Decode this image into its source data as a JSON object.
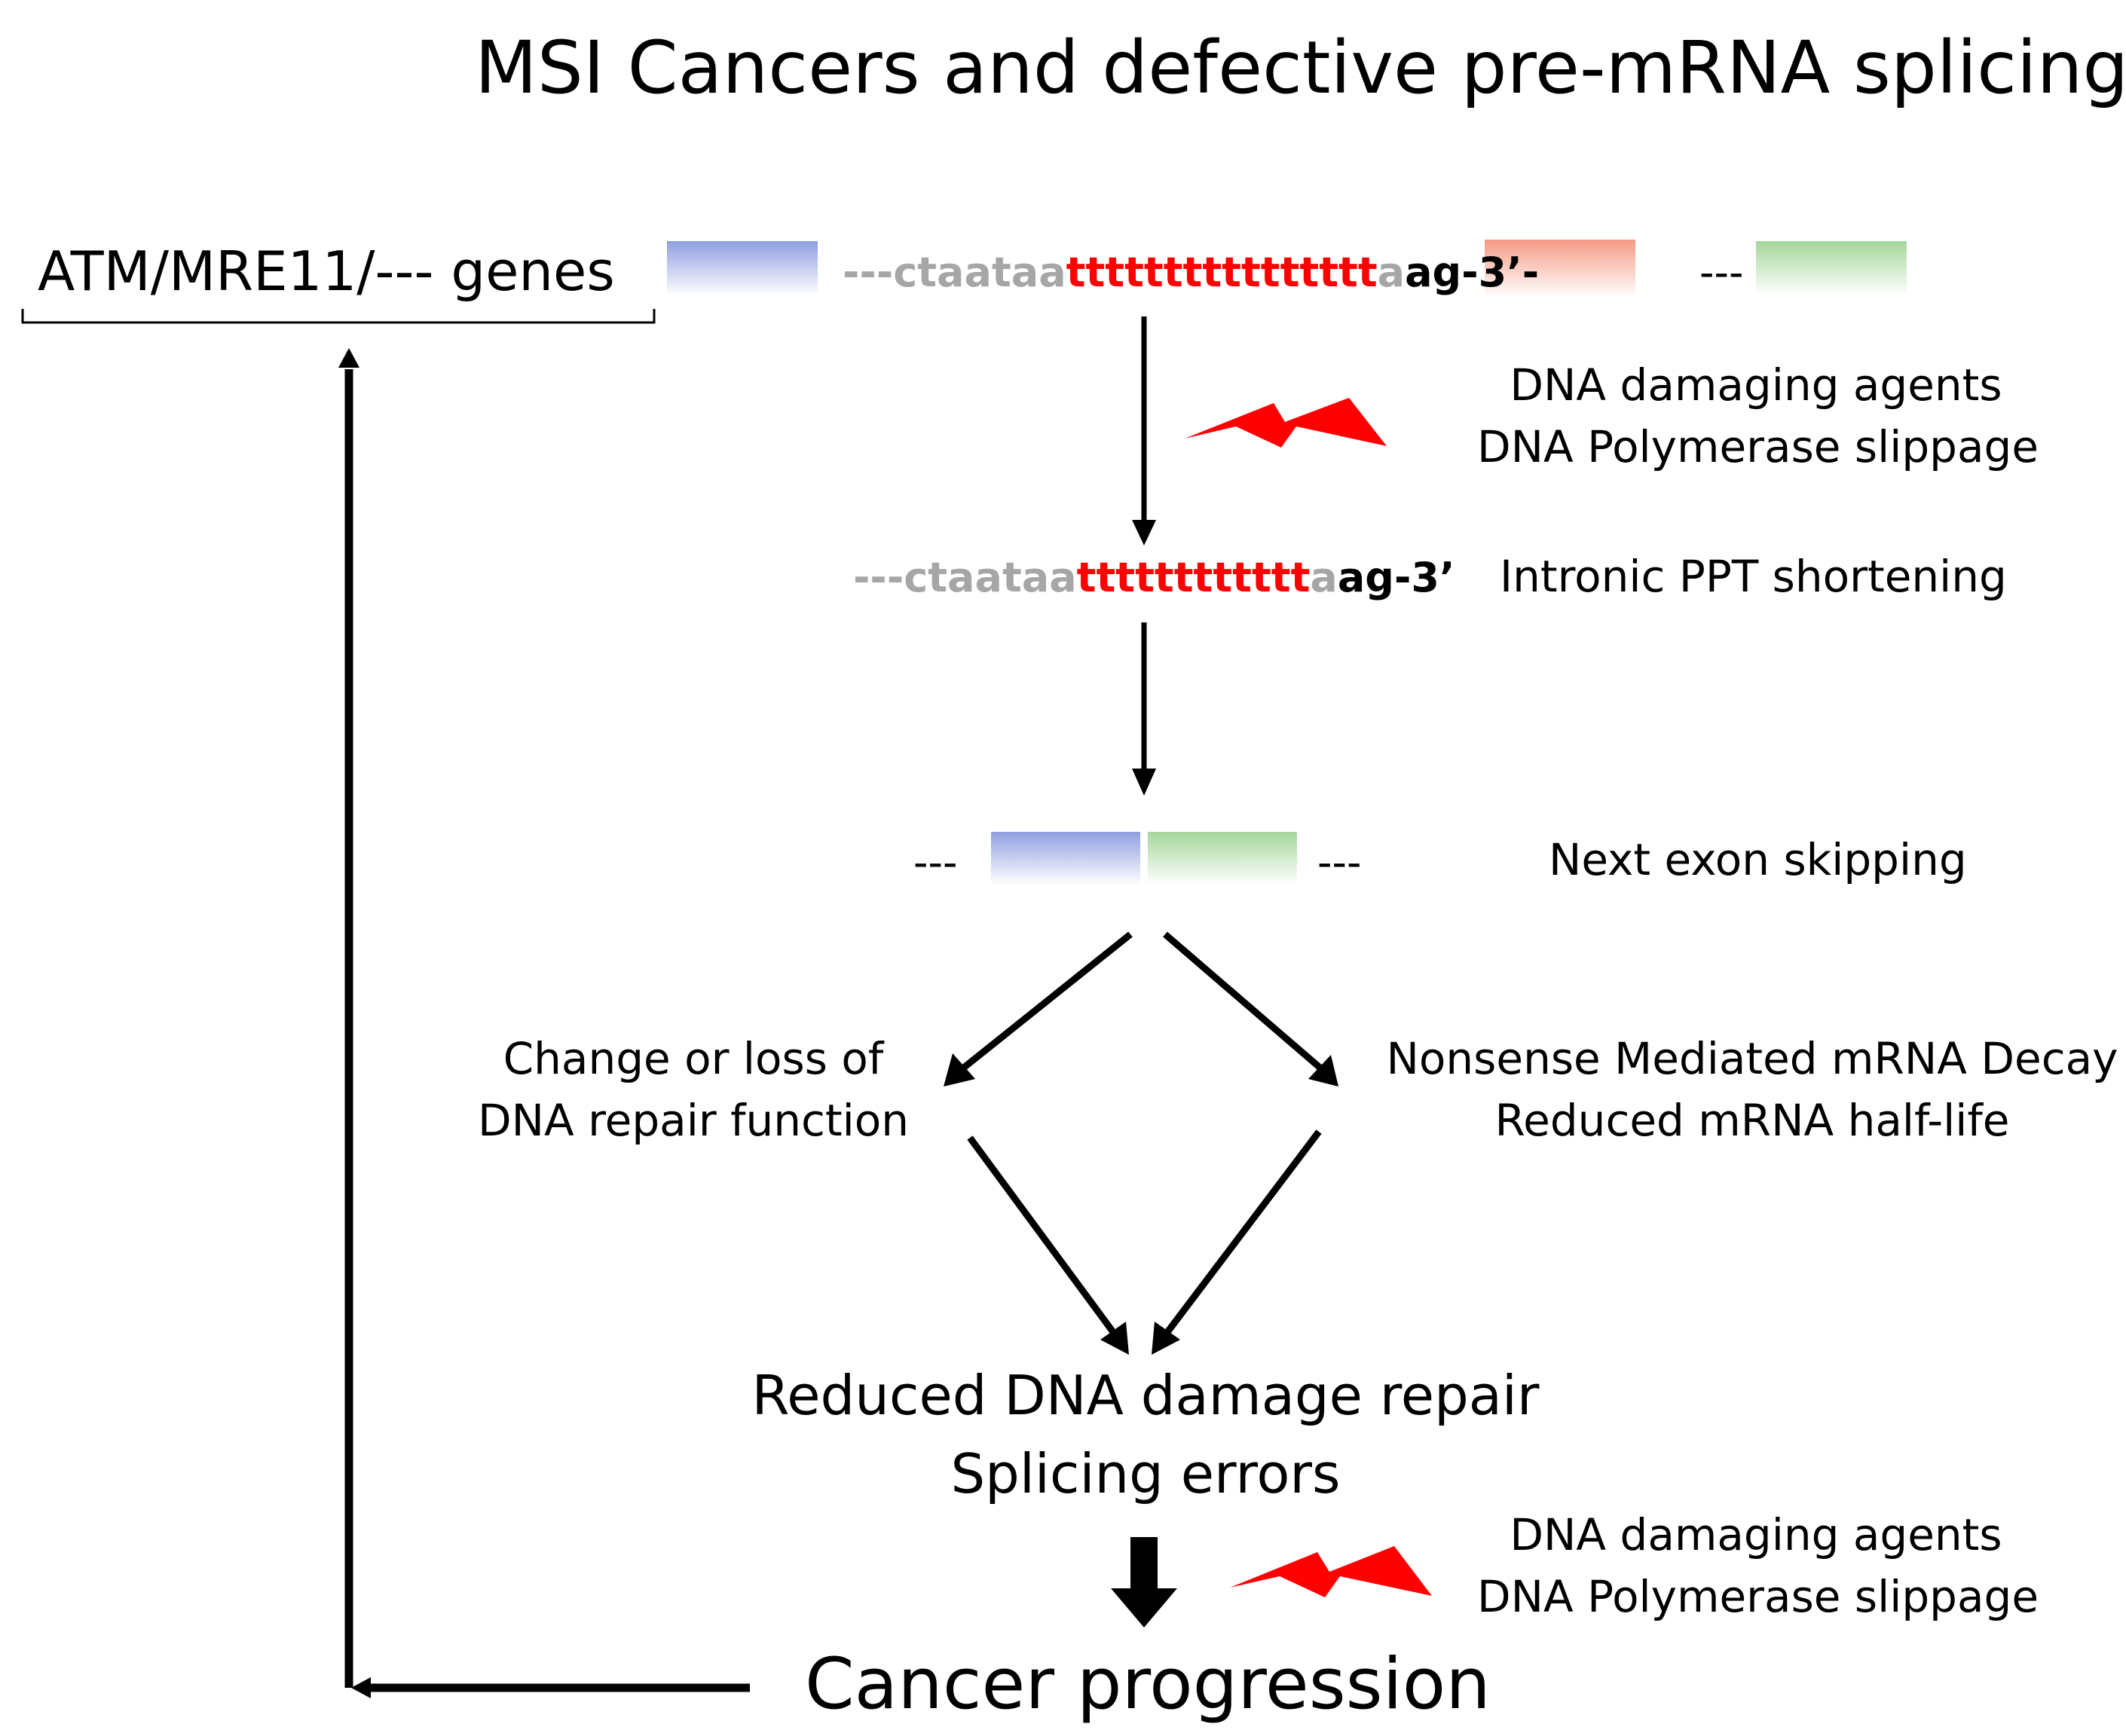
{
  "title": "MSI Cancers and defective pre-mRNA splicing",
  "genes_label": "ATM/MRE11/--- genes",
  "sequence_full": {
    "prefix": "---ctaataa",
    "poly_t": "tttttttttttttttt",
    "a": "a",
    "suffix": "ag-3’-"
  },
  "sequence_short": {
    "prefix": "---ctaataa",
    "poly_t": "tttttttttttt",
    "a": "a",
    "suffix": "ag-3’"
  },
  "dashes": "---",
  "damage_text_top": [
    "DNA damaging agents",
    "DNA Polymerase slippage"
  ],
  "damage_text_bottom": [
    "DNA damaging agents",
    "DNA Polymerase slippage"
  ],
  "ppt_label": "Intronic PPT shortening",
  "exon_skip_label": "Next exon skipping",
  "left_branch": [
    "Change or loss of",
    "DNA repair function"
  ],
  "right_branch": [
    "Nonsense Mediated mRNA Decay",
    "Reduced mRNA half-life"
  ],
  "outcome": [
    "Reduced DNA damage repair",
    "Splicing errors"
  ],
  "final": "Cancer progression",
  "colors": {
    "exon_blue": "#8e9fe0",
    "exon_salmon": "#f59a84",
    "exon_green": "#a5d79a",
    "poly_t_red": "#ff0000",
    "intron_grey": "#a6a6a6",
    "bolt_red": "#ff0000"
  }
}
